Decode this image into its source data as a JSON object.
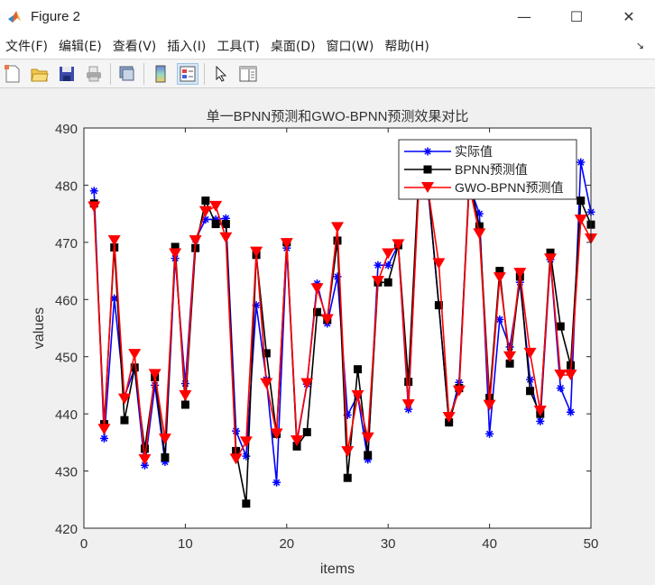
{
  "window": {
    "title": "Figure 2",
    "controls": {
      "minimize": "—",
      "maximize": "☐",
      "close": "✕"
    }
  },
  "menubar": {
    "items": [
      {
        "label": "文件(F)"
      },
      {
        "label": "编辑(E)"
      },
      {
        "label": "查看(V)"
      },
      {
        "label": "插入(I)"
      },
      {
        "label": "工具(T)"
      },
      {
        "label": "桌面(D)"
      },
      {
        "label": "窗口(W)"
      },
      {
        "label": "帮助(H)"
      }
    ],
    "dock_glyph": "↘"
  },
  "toolbar": {
    "buttons": [
      {
        "name": "new-figure-icon"
      },
      {
        "name": "open-file-icon"
      },
      {
        "name": "save-icon"
      },
      {
        "name": "print-icon"
      },
      {
        "name": "print-preview-icon"
      },
      {
        "name": "colorbar-icon"
      },
      {
        "name": "legend-icon",
        "active": true
      },
      {
        "name": "edit-plot-pointer-icon"
      },
      {
        "name": "property-inspector-icon"
      }
    ]
  },
  "colors": {
    "actual": "#0000ff",
    "bpnn": "#000000",
    "gwo": "#ff0000",
    "axes_bg": "#ffffff",
    "figure_bg": "#f0f0f0",
    "axis": "#262626"
  },
  "chart_data": {
    "type": "line",
    "title": "单一BPNN预测和GWO-BPNN预测效果对比",
    "xlabel": "items",
    "ylabel": "values",
    "xlim": [
      0,
      50
    ],
    "ylim": [
      420,
      490
    ],
    "xticks": [
      0,
      10,
      20,
      30,
      40,
      50
    ],
    "yticks": [
      420,
      430,
      440,
      450,
      460,
      470,
      480,
      490
    ],
    "grid": false,
    "legend_position": "northeast",
    "x": [
      1,
      2,
      3,
      4,
      5,
      6,
      7,
      8,
      9,
      10,
      11,
      12,
      13,
      14,
      15,
      16,
      17,
      18,
      19,
      20,
      21,
      22,
      23,
      24,
      25,
      26,
      27,
      28,
      29,
      30,
      31,
      32,
      33,
      34,
      35,
      36,
      37,
      38,
      39,
      40,
      41,
      42,
      43,
      44,
      45,
      46,
      47,
      48,
      49,
      50
    ],
    "series": [
      {
        "name": "实际值",
        "color": "#0000ff",
        "marker": "asterisk",
        "values": [
          479.0,
          435.7,
          460.2,
          443.0,
          448.0,
          431.0,
          445.0,
          431.6,
          467.2,
          445.3,
          470.5,
          474.0,
          474.0,
          474.2,
          437.0,
          432.6,
          459.0,
          446.0,
          428.0,
          469.0,
          435.0,
          445.2,
          462.8,
          455.8,
          464.0,
          439.8,
          443.2,
          432.0,
          466.0,
          466.0,
          469.5,
          440.8,
          480.0,
          478.0,
          459.0,
          438.5,
          445.5,
          480.0,
          475.0,
          436.5,
          456.5,
          451.7,
          463.0,
          446.0,
          438.7,
          467.0,
          444.5,
          440.3,
          484.0,
          475.3
        ]
      },
      {
        "name": "BPNN预测值",
        "color": "#000000",
        "marker": "square",
        "values": [
          476.8,
          438.2,
          469.1,
          438.9,
          448.1,
          433.9,
          446.4,
          432.4,
          469.2,
          441.6,
          469.0,
          477.3,
          473.2,
          473.2,
          433.5,
          424.3,
          467.8,
          450.6,
          436.5,
          470.0,
          434.3,
          436.8,
          457.8,
          456.5,
          470.3,
          428.8,
          447.8,
          432.8,
          463.0,
          463.0,
          469.5,
          445.6,
          481.0,
          478.5,
          459.0,
          438.5,
          444.5,
          481.0,
          472.8,
          442.8,
          465.0,
          448.8,
          464.0,
          444.0,
          440.0,
          468.2,
          455.3,
          448.5,
          477.3,
          473.1
        ]
      },
      {
        "name": "GWO-BPNN预测值",
        "color": "#ff0000",
        "marker": "triangle-down",
        "values": [
          476.2,
          437.3,
          470.3,
          442.6,
          450.4,
          432.0,
          446.9,
          435.6,
          468.0,
          443.2,
          470.3,
          475.4,
          476.3,
          470.8,
          432.1,
          435.1,
          468.3,
          445.3,
          436.5,
          469.8,
          435.3,
          445.3,
          461.9,
          456.5,
          472.6,
          433.4,
          443.2,
          435.8,
          463.2,
          468.0,
          469.6,
          441.6,
          478.5,
          478.5,
          466.3,
          439.4,
          444.0,
          480.0,
          471.5,
          441.5,
          463.8,
          450.0,
          464.6,
          450.6,
          440.5,
          467.1,
          446.8,
          446.8,
          473.9,
          470.6
        ]
      }
    ]
  }
}
